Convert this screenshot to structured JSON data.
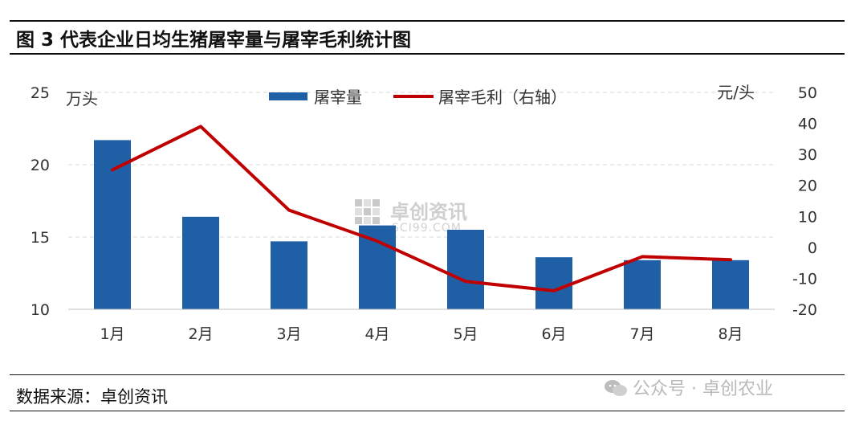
{
  "figure": {
    "title": "图 3 代表企业日均生猪屠宰量与屠宰毛利统计图",
    "source": "数据来源：卓创资讯",
    "watermark_footer": "公众号 · 卓创农业",
    "watermark_center": [
      "卓创资讯",
      "SCI99.COM"
    ]
  },
  "chart_data": {
    "type": "bar",
    "categories": [
      "1月",
      "2月",
      "3月",
      "4月",
      "5月",
      "6月",
      "7月",
      "8月"
    ],
    "series": [
      {
        "name": "屠宰量",
        "type": "bar",
        "axis": "left",
        "color": "#1f5fa6",
        "values": [
          21.7,
          16.4,
          14.7,
          15.8,
          15.5,
          13.6,
          13.4,
          13.4
        ]
      },
      {
        "name": "屠宰毛利（右轴）",
        "type": "line",
        "axis": "right",
        "color": "#c00000",
        "values": [
          25,
          39,
          12,
          2,
          -11,
          -14,
          -3,
          -4
        ]
      }
    ],
    "y_left": {
      "unit": "万头",
      "range": [
        10,
        25
      ],
      "ticks": [
        10,
        15,
        20,
        25
      ]
    },
    "y_right": {
      "unit": "元/头",
      "range": [
        -20,
        50
      ],
      "ticks": [
        -20,
        -10,
        0,
        10,
        20,
        30,
        40,
        50
      ]
    },
    "grid": true,
    "legend_position": "top-center"
  }
}
